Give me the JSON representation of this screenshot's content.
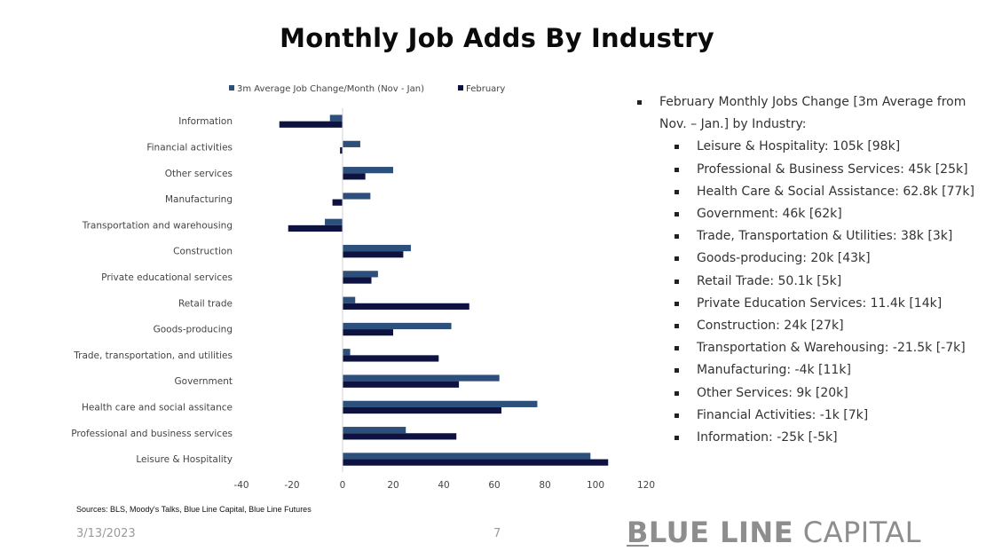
{
  "slide": {
    "title": "Monthly Job Adds By Industry",
    "sources": "Sources: BLS, Moody's Talks, Blue Line Capital, Blue Line Futures",
    "date": "3/13/2023",
    "page": "7",
    "brand_first": "B",
    "brand_bold_rest": "LUE LINE",
    "brand_light": "CAPITAL"
  },
  "colors": {
    "avg": "#2c4f7c",
    "feb": "#0e1241",
    "axis": "#d0d0d0",
    "label": "#444444"
  },
  "chart_data": {
    "type": "bar",
    "orientation": "horizontal",
    "title": "",
    "legend_position": "top-left",
    "categories": [
      "Information",
      "Financial activities",
      "Other services",
      "Manufacturing",
      "Transportation and warehousing",
      "Construction",
      "Private educational services",
      "Retail trade",
      "Goods-producing",
      "Trade, transportation, and utilities",
      "Government",
      "Health care and social assitance",
      "Professional and business services",
      "Leisure & Hospitality"
    ],
    "series": [
      {
        "name": "3m Average Job Change/Month (Nov - Jan)",
        "values": [
          -5,
          7,
          20,
          11,
          -7,
          27,
          14,
          5,
          43,
          3,
          62,
          77,
          25,
          98
        ]
      },
      {
        "name": "February",
        "values": [
          -25,
          -1,
          9,
          -4,
          -21.5,
          24,
          11.4,
          50.1,
          20,
          38,
          46,
          62.8,
          45,
          105
        ]
      }
    ],
    "xlim": [
      -40,
      120
    ],
    "xticks": [
      "-40",
      "-20",
      "0",
      "20",
      "40",
      "60",
      "80",
      "100",
      "120"
    ],
    "xlabel": "",
    "ylabel": "",
    "grid": false
  },
  "bullets": {
    "header": "February Monthly Jobs Change [3m Average from Nov. – Jan.] by Industry:",
    "items": [
      "Leisure & Hospitality: 105k [98k]",
      "Professional & Business Services: 45k [25k]",
      "Health Care & Social Assistance: 62.8k [77k]",
      "Government: 46k [62k]",
      "Trade, Transportation  & Utilities: 38k [3k]",
      "Goods-producing: 20k [43k]",
      "Retail Trade: 50.1k [5k]",
      "Private  Education Services: 11.4k [14k]",
      "Construction: 24k [27k]",
      "Transportation & Warehousing: -21.5k [-7k]",
      "Manufacturing: -4k [11k]",
      "Other Services: 9k [20k]",
      "Financial Activities: -1k [7k]",
      "Information: -25k [-5k]"
    ]
  }
}
